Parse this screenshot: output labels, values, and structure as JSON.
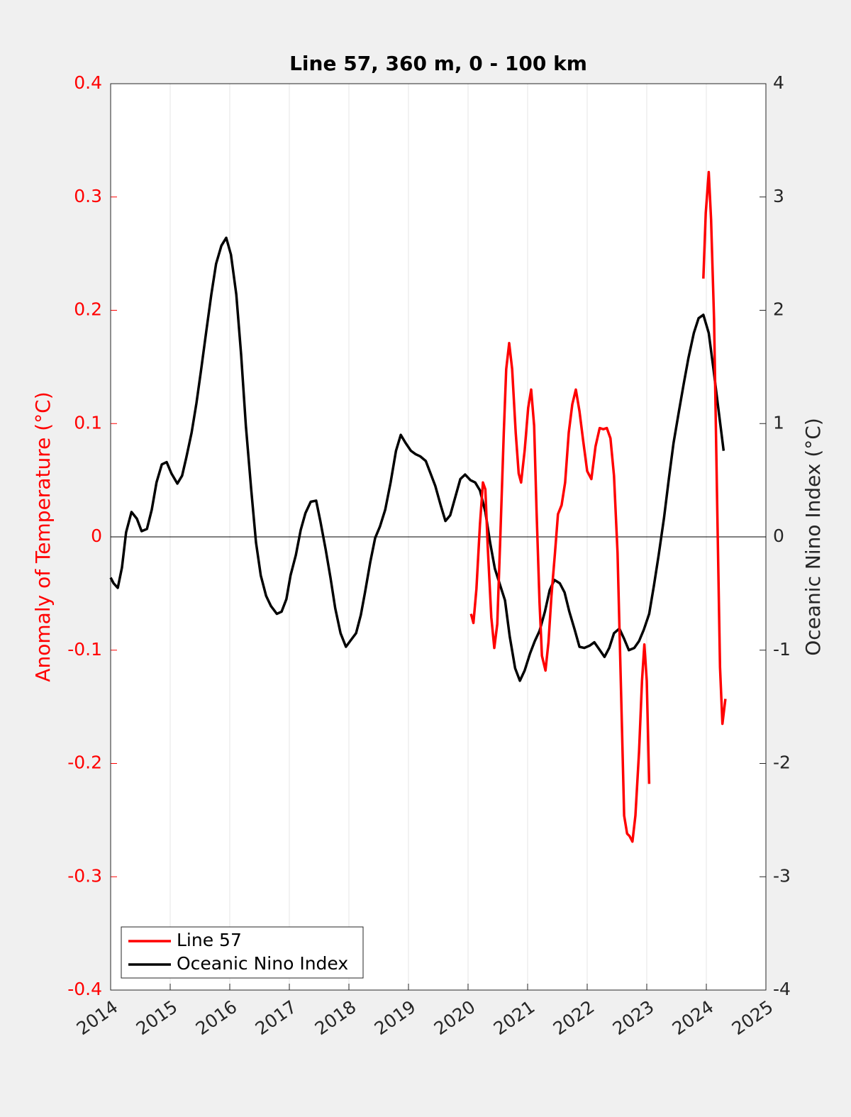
{
  "chart_data": {
    "type": "line",
    "title": "Line 57, 360 m, 0 - 100 km",
    "ylabel": "Anomaly of Temperature (°C)",
    "y2label": "Oceanic Nino Index (°C)",
    "xlim": [
      2014,
      2025
    ],
    "xticks": [
      2014,
      2015,
      2016,
      2017,
      2018,
      2019,
      2020,
      2021,
      2022,
      2023,
      2024,
      2025
    ],
    "ylim": [
      -0.4,
      0.4
    ],
    "yticks": [
      -0.4,
      -0.3,
      -0.2,
      -0.1,
      0,
      0.1,
      0.2,
      0.3,
      0.4
    ],
    "y2lim": [
      -4,
      4
    ],
    "y2ticks": [
      -4,
      -3,
      -2,
      -1,
      0,
      1,
      2,
      3,
      4
    ],
    "grid": "x",
    "zero_line": true,
    "legend": "southwest",
    "series": [
      {
        "name": "Line 57",
        "color": "#ff0000",
        "axis": "y",
        "x": [
          2020.05,
          2020.09,
          2020.14,
          2020.2,
          2020.25,
          2020.29,
          2020.33,
          2020.39,
          2020.44,
          2020.49,
          2020.54,
          2020.6,
          2020.64,
          2020.69,
          2020.74,
          2020.8,
          2020.85,
          2020.89,
          2020.95,
          2021.01,
          2021.06,
          2021.11,
          2021.15,
          2021.2,
          2021.24,
          2021.3,
          2021.35,
          2021.4,
          2021.46,
          2021.51,
          2021.57,
          2021.63,
          2021.69,
          2021.75,
          2021.81,
          2021.87,
          2021.93,
          2022.0,
          2022.07,
          2022.14,
          2022.21,
          2022.27,
          2022.33,
          2022.39,
          2022.45,
          2022.51,
          2022.57,
          2022.62,
          2022.67,
          2022.71,
          2022.76,
          2022.81,
          2022.87,
          2022.92,
          2022.96,
          2023.0,
          2023.04,
          2023.5,
          2023.95,
          2023.99,
          2024.04,
          2024.08,
          2024.13,
          2024.18,
          2024.23,
          2024.27,
          2024.32
        ],
        "values": [
          -0.068,
          -0.076,
          -0.046,
          0.011,
          0.048,
          0.042,
          -0.008,
          -0.071,
          -0.098,
          -0.077,
          -0.002,
          0.092,
          0.148,
          0.171,
          0.148,
          0.092,
          0.056,
          0.048,
          0.076,
          0.114,
          0.13,
          0.098,
          0.023,
          -0.058,
          -0.105,
          -0.118,
          -0.093,
          -0.052,
          -0.014,
          0.02,
          0.028,
          0.048,
          0.092,
          0.117,
          0.13,
          0.111,
          0.086,
          0.058,
          0.051,
          0.08,
          0.096,
          0.095,
          0.096,
          0.087,
          0.054,
          -0.014,
          -0.14,
          -0.246,
          -0.262,
          -0.264,
          -0.269,
          -0.246,
          -0.19,
          -0.127,
          -0.095,
          -0.127,
          -0.218,
          null,
          0.228,
          0.286,
          0.322,
          0.28,
          0.192,
          0.036,
          -0.115,
          -0.165,
          -0.143
        ]
      },
      {
        "name": "Oceanic Nino Index",
        "color": "#000000",
        "axis": "y2",
        "x": [
          2014.0,
          2014.05,
          2014.12,
          2014.19,
          2014.26,
          2014.35,
          2014.44,
          2014.52,
          2014.61,
          2014.69,
          2014.77,
          2014.86,
          2014.94,
          2015.02,
          2015.12,
          2015.2,
          2015.27,
          2015.36,
          2015.44,
          2015.52,
          2015.61,
          2015.69,
          2015.77,
          2015.86,
          2015.94,
          2016.02,
          2016.11,
          2016.19,
          2016.27,
          2016.36,
          2016.44,
          2016.52,
          2016.61,
          2016.69,
          2016.79,
          2016.87,
          2016.95,
          2017.02,
          2017.11,
          2017.19,
          2017.27,
          2017.36,
          2017.45,
          2017.52,
          2017.61,
          2017.69,
          2017.77,
          2017.86,
          2017.95,
          2018.02,
          2018.12,
          2018.2,
          2018.27,
          2018.36,
          2018.44,
          2018.52,
          2018.61,
          2018.7,
          2018.79,
          2018.87,
          2018.95,
          2019.04,
          2019.12,
          2019.2,
          2019.29,
          2019.37,
          2019.45,
          2019.54,
          2019.62,
          2019.7,
          2019.79,
          2019.87,
          2019.95,
          2020.04,
          2020.12,
          2020.2,
          2020.29,
          2020.37,
          2020.45,
          2020.54,
          2020.62,
          2020.7,
          2020.79,
          2020.87,
          2020.95,
          2021.04,
          2021.12,
          2021.2,
          2021.29,
          2021.37,
          2021.45,
          2021.54,
          2021.62,
          2021.7,
          2021.79,
          2021.87,
          2021.95,
          2022.04,
          2022.12,
          2022.2,
          2022.29,
          2022.37,
          2022.45,
          2022.54,
          2022.62,
          2022.7,
          2022.79,
          2022.87,
          2022.95,
          2023.04,
          2023.12,
          2023.2,
          2023.29,
          2023.37,
          2023.45,
          2023.54,
          2023.62,
          2023.7,
          2023.79,
          2023.87,
          2023.95,
          2024.04,
          2024.12,
          2024.2,
          2024.29
        ],
        "values": [
          -0.36,
          -0.41,
          -0.45,
          -0.27,
          0.04,
          0.22,
          0.16,
          0.05,
          0.07,
          0.24,
          0.48,
          0.64,
          0.66,
          0.56,
          0.47,
          0.54,
          0.7,
          0.92,
          1.18,
          1.48,
          1.83,
          2.14,
          2.41,
          2.57,
          2.64,
          2.49,
          2.14,
          1.61,
          0.98,
          0.42,
          -0.05,
          -0.34,
          -0.52,
          -0.61,
          -0.68,
          -0.66,
          -0.55,
          -0.34,
          -0.16,
          0.06,
          0.21,
          0.31,
          0.32,
          0.14,
          -0.11,
          -0.36,
          -0.63,
          -0.85,
          -0.97,
          -0.92,
          -0.85,
          -0.69,
          -0.49,
          -0.22,
          -0.01,
          0.09,
          0.24,
          0.48,
          0.76,
          0.9,
          0.83,
          0.76,
          0.73,
          0.71,
          0.67,
          0.56,
          0.45,
          0.28,
          0.14,
          0.19,
          0.36,
          0.51,
          0.55,
          0.5,
          0.48,
          0.41,
          0.22,
          -0.05,
          -0.28,
          -0.43,
          -0.56,
          -0.88,
          -1.16,
          -1.27,
          -1.18,
          -1.03,
          -0.92,
          -0.83,
          -0.66,
          -0.47,
          -0.38,
          -0.41,
          -0.49,
          -0.66,
          -0.82,
          -0.97,
          -0.98,
          -0.96,
          -0.93,
          -0.99,
          -1.06,
          -0.98,
          -0.85,
          -0.81,
          -0.9,
          -1.0,
          -0.98,
          -0.92,
          -0.82,
          -0.68,
          -0.43,
          -0.16,
          0.17,
          0.51,
          0.83,
          1.11,
          1.35,
          1.58,
          1.8,
          1.93,
          1.96,
          1.8,
          1.48,
          1.14,
          0.76
        ]
      }
    ]
  }
}
